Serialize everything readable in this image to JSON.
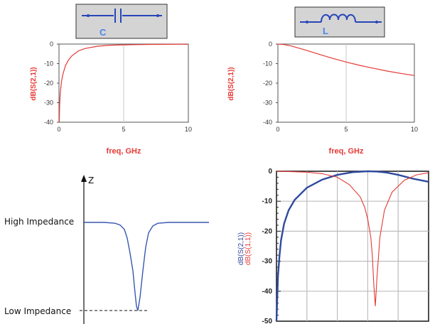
{
  "chart_data": [
    {
      "type": "line",
      "inset_label": "C",
      "xlabel": "freq, GHz",
      "ylabel": "dB(S(2,1))",
      "xlim": [
        0,
        10
      ],
      "ylim": [
        -40,
        0
      ],
      "x_ticks": [
        "0",
        "5",
        "10"
      ],
      "y_ticks": [
        "0",
        "-10",
        "-20",
        "-30",
        "-40"
      ],
      "grid": true,
      "series": [
        {
          "color": "#e53935",
          "x": [
            0.02,
            0.05,
            0.1,
            0.2,
            0.3,
            0.5,
            0.75,
            1,
            1.5,
            2,
            3,
            4,
            5,
            6,
            7,
            8,
            9,
            10
          ],
          "values": [
            -40,
            -31,
            -25,
            -19,
            -15.5,
            -11,
            -8,
            -6,
            -3.5,
            -2.3,
            -1.1,
            -0.6,
            -0.4,
            -0.3,
            -0.2,
            -0.15,
            -0.1,
            -0.1
          ]
        }
      ]
    },
    {
      "type": "line",
      "inset_label": "L",
      "xlabel": "freq, GHz",
      "ylabel": "dB(S(2,1))",
      "xlim": [
        0,
        10
      ],
      "ylim": [
        -40,
        0
      ],
      "x_ticks": [
        "0",
        "5",
        "10"
      ],
      "y_ticks": [
        "0",
        "-10",
        "-20",
        "-30",
        "-40"
      ],
      "grid": true,
      "series": [
        {
          "color": "#e53935",
          "x": [
            0,
            0.5,
            1,
            2,
            3,
            4,
            5,
            6,
            7,
            8,
            9,
            10
          ],
          "values": [
            0,
            -0.3,
            -1,
            -3,
            -5.2,
            -7.3,
            -9.2,
            -10.9,
            -12.4,
            -13.8,
            -15,
            -16.1
          ]
        }
      ]
    },
    {
      "type": "line",
      "axis_label": "Z",
      "annotations": [
        "High Impedance",
        "Low Impedance"
      ],
      "series": [
        {
          "color": "#3a57b0",
          "x": [
            0,
            30,
            45,
            52,
            58,
            62,
            66,
            70,
            73,
            75,
            77,
            80,
            84,
            88,
            92,
            98,
            105,
            120,
            140,
            177
          ],
          "values": [
            1,
            1,
            0.99,
            0.97,
            0.92,
            0.82,
            0.65,
            0.45,
            0.2,
            0.05,
            0,
            0.15,
            0.45,
            0.72,
            0.88,
            0.96,
            0.99,
            1,
            1,
            1
          ]
        }
      ]
    },
    {
      "type": "line",
      "ylim": [
        -50,
        0
      ],
      "y_ticks": [
        "0",
        "-10",
        "-20",
        "-30",
        "-40",
        "-50"
      ],
      "ylabels": [
        "dB(S(2,1))",
        "dB(S(1,1))"
      ],
      "grid": true,
      "series": [
        {
          "color": "#2f4a9e",
          "x": [
            0,
            1,
            2,
            3,
            5,
            8,
            12,
            20,
            30,
            40,
            50,
            60,
            66,
            72,
            80,
            90,
            100
          ],
          "values": [
            -50,
            -35,
            -28,
            -23,
            -17.5,
            -13,
            -9.5,
            -5.5,
            -2.8,
            -1.2,
            -0.3,
            0,
            -0.1,
            -0.4,
            -1.2,
            -2.5,
            -3.5
          ]
        },
        {
          "color": "#e53935",
          "x": [
            0,
            8,
            20,
            30,
            40,
            48,
            55,
            58,
            60,
            62,
            63,
            64,
            65,
            66,
            68,
            71,
            76,
            84,
            92,
            100
          ],
          "values": [
            0,
            -0.1,
            -0.3,
            -0.8,
            -2,
            -4.5,
            -8.5,
            -12,
            -16,
            -22,
            -28,
            -38,
            -45,
            -36,
            -22,
            -13,
            -7,
            -3,
            -1.2,
            -0.5
          ]
        }
      ]
    }
  ]
}
